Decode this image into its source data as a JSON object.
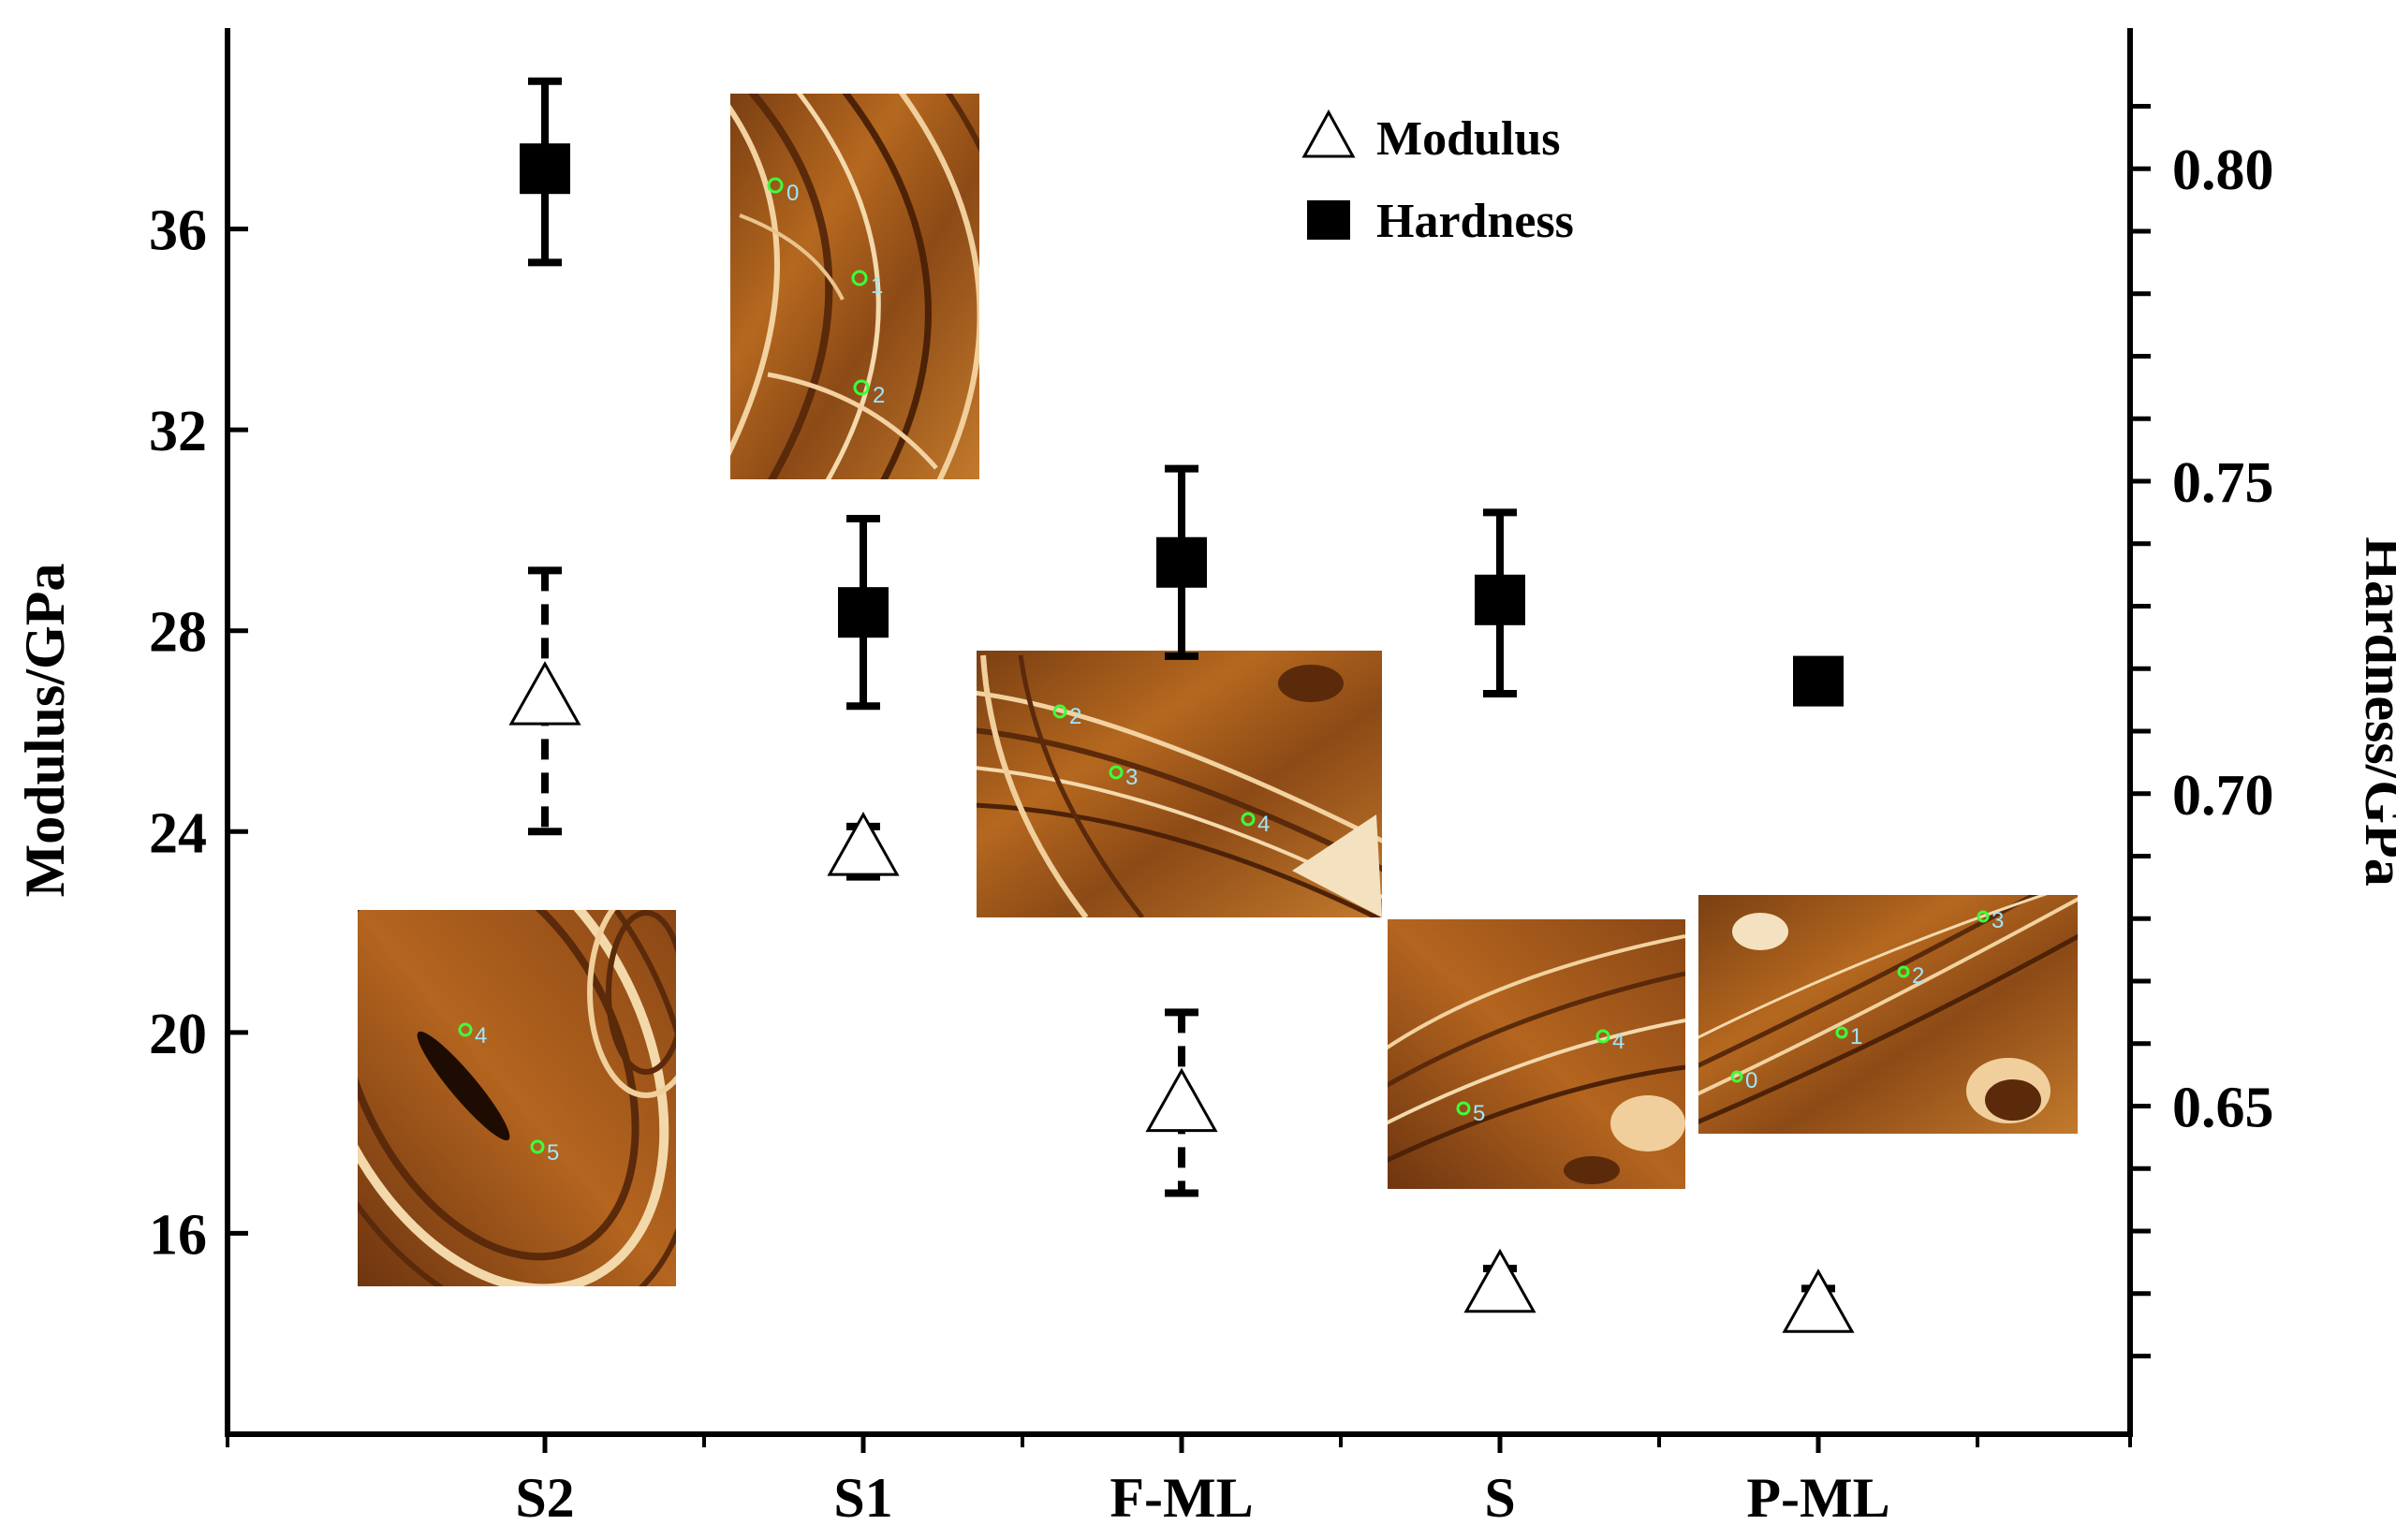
{
  "chart_data": {
    "type": "scatter",
    "categories": [
      "S2",
      "S1",
      "F-ML",
      "S",
      "P-ML"
    ],
    "series": [
      {
        "name": "Modulus",
        "axis": "left",
        "marker": "open-triangle",
        "color": "#000000",
        "values": [
          26.6,
          23.6,
          18.5,
          14.9,
          14.5
        ],
        "error_low": [
          24.0,
          23.1,
          16.8,
          14.5,
          14.1
        ],
        "error_high": [
          29.2,
          24.1,
          20.4,
          15.3,
          14.9
        ],
        "error_style": "dashed"
      },
      {
        "name": "Hardness",
        "axis": "right",
        "marker": "filled-square",
        "color": "#000000",
        "values": [
          0.8,
          0.729,
          0.737,
          0.731,
          0.718
        ],
        "error_low": [
          0.785,
          0.714,
          0.722,
          0.716,
          0.715
        ],
        "error_high": [
          0.814,
          0.744,
          0.752,
          0.745,
          0.721
        ],
        "error_style": "solid"
      }
    ],
    "left_axis": {
      "label": "Modulus/GPa",
      "ticks": [
        16,
        20,
        24,
        28,
        32,
        36
      ],
      "tick_labels": [
        "16",
        "20",
        "24",
        "28",
        "32",
        "36"
      ],
      "range": [
        12.0,
        40.0
      ]
    },
    "right_axis": {
      "label": "Hardness/GPa",
      "ticks": [
        0.65,
        0.7,
        0.75,
        0.8
      ],
      "tick_labels": [
        "0.65",
        "0.70",
        "0.75",
        "0.80"
      ],
      "minor_ticks": [
        0.61,
        0.62,
        0.63,
        0.64,
        0.65,
        0.66,
        0.67,
        0.68,
        0.69,
        0.7,
        0.71,
        0.72,
        0.73,
        0.74,
        0.75,
        0.76,
        0.77,
        0.78,
        0.79,
        0.8,
        0.81
      ],
      "range": [
        0.5975,
        0.8225
      ]
    },
    "legend": {
      "position": "top-right",
      "entries": [
        "Modulus",
        "Hardness"
      ]
    },
    "grid": false,
    "insets": [
      {
        "name": "inset-s1",
        "points": [
          "0",
          "1",
          "2"
        ]
      },
      {
        "name": "inset-s2",
        "points": [
          "4",
          "5"
        ]
      },
      {
        "name": "inset-fml",
        "points": [
          "2",
          "3",
          "4"
        ]
      },
      {
        "name": "inset-s",
        "points": [
          "4",
          "5"
        ]
      },
      {
        "name": "inset-pml",
        "points": [
          "0",
          "1",
          "2",
          "3"
        ]
      }
    ]
  }
}
